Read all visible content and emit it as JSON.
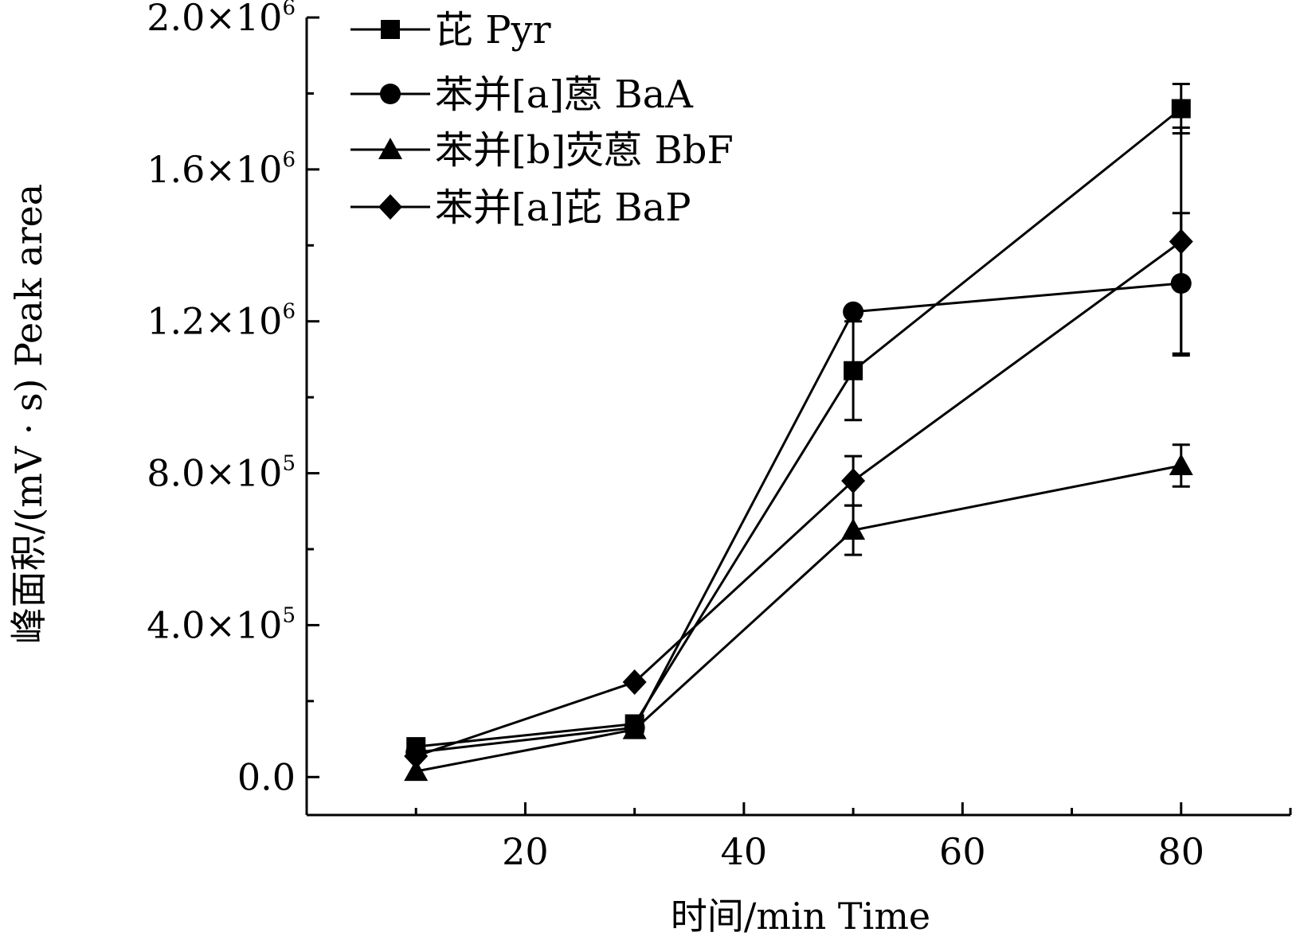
{
  "chart_data": {
    "type": "line",
    "xlabel": "时间/min Time",
    "ylabel": "峰面积/(mV · s) Peak area",
    "xlim": [
      0,
      90
    ],
    "ylim": [
      -100000,
      2000000
    ],
    "x_ticks": [
      {
        "value": 20,
        "label": "20"
      },
      {
        "value": 40,
        "label": "40"
      },
      {
        "value": 60,
        "label": "60"
      },
      {
        "value": 80,
        "label": "80"
      }
    ],
    "x_minor_ticks": [
      10,
      30,
      50,
      70,
      90
    ],
    "y_ticks": [
      {
        "value": 0,
        "mantissa": "0.0",
        "exponent": ""
      },
      {
        "value": 400000,
        "mantissa": "4.0",
        "exponent": "5"
      },
      {
        "value": 800000,
        "mantissa": "8.0",
        "exponent": "5"
      },
      {
        "value": 1200000,
        "mantissa": "1.2",
        "exponent": "6"
      },
      {
        "value": 1600000,
        "mantissa": "1.6",
        "exponent": "6"
      },
      {
        "value": 2000000,
        "mantissa": "2.0",
        "exponent": "6"
      }
    ],
    "y_minor_ticks": [
      200000,
      600000,
      1000000,
      1400000,
      1800000
    ],
    "legend_position": "top-left",
    "series": [
      {
        "name": "芘 Pyr",
        "marker": "square",
        "x": [
          10,
          30,
          50,
          80
        ],
        "y": [
          80000,
          140000,
          1070000,
          1760000
        ],
        "err": [
          0,
          0,
          130000,
          65000
        ]
      },
      {
        "name": "苯并[a]蒽 BaA",
        "marker": "circle",
        "x": [
          10,
          30,
          50,
          80
        ],
        "y": [
          65000,
          130000,
          1225000,
          1300000
        ],
        "err": [
          0,
          0,
          0,
          185000
        ]
      },
      {
        "name": "苯并[b]荧蒽 BbF",
        "marker": "triangle",
        "x": [
          10,
          30,
          50,
          80
        ],
        "y": [
          15000,
          125000,
          650000,
          820000
        ],
        "err": [
          0,
          0,
          65000,
          55000
        ]
      },
      {
        "name": "苯并[a]芘 BaP",
        "marker": "diamond",
        "x": [
          10,
          30,
          50,
          80
        ],
        "y": [
          55000,
          250000,
          780000,
          1410000
        ],
        "err": [
          0,
          0,
          65000,
          300000
        ]
      }
    ]
  }
}
